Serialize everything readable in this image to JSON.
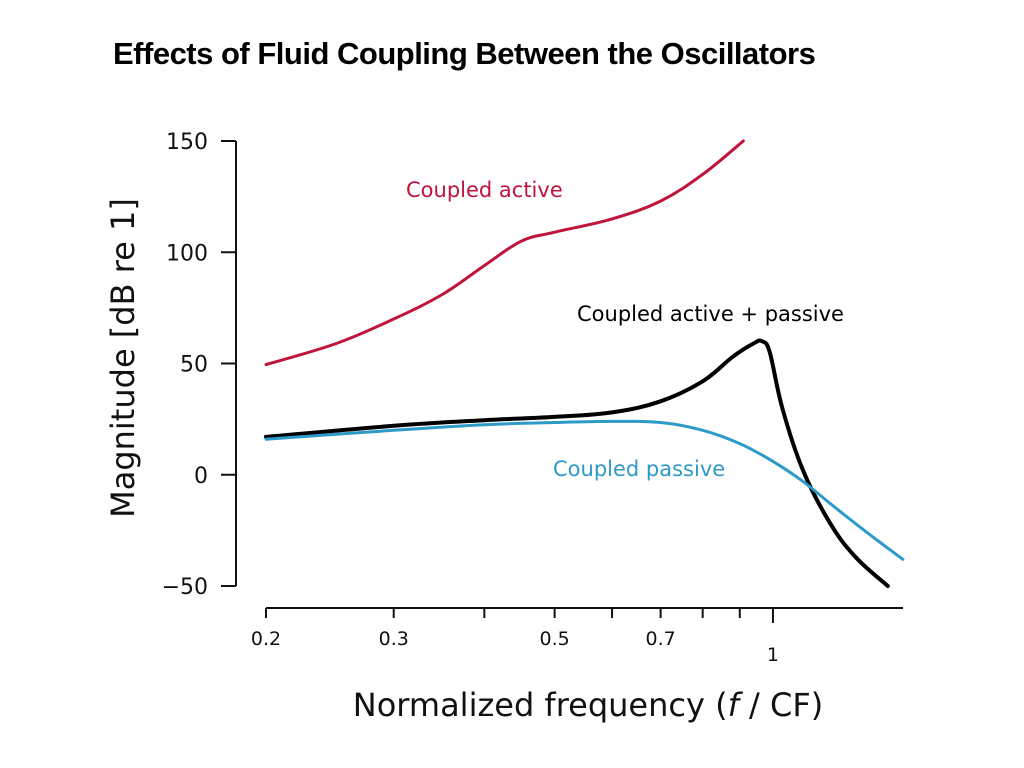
{
  "title": "Effects of Fluid Coupling Between the Oscillators",
  "chart_data": {
    "type": "line",
    "title": "Effects of Fluid Coupling Between the Oscillators",
    "xlabel_parts": [
      "Normalized frequency (",
      "f",
      " / CF)"
    ],
    "xlabel": "Normalized frequency (f / CF)",
    "ylabel": "Magnitude [dB re 1]",
    "xscale": "log",
    "xlim": [
      0.2,
      1.51
    ],
    "ylim": [
      -50,
      150
    ],
    "yticks": [
      150,
      100,
      50,
      0,
      -50
    ],
    "ytick_labels": [
      "150",
      "100",
      "50",
      "0",
      "−50"
    ],
    "xticks": [
      0.2,
      0.3,
      0.4,
      0.5,
      0.6,
      0.7,
      0.8,
      0.9,
      1
    ],
    "xtick_labels": [
      {
        "value": 0.2,
        "label": "0.2"
      },
      {
        "value": 0.3,
        "label": "0.3"
      },
      {
        "value": 0.5,
        "label": "0.5"
      },
      {
        "value": 0.7,
        "label": "0.7"
      },
      {
        "value": 1,
        "label": "1"
      }
    ],
    "grid": false,
    "legend": "inline labels",
    "series": [
      {
        "name": "Coupled active",
        "color": "#c0143c",
        "x": [
          0.2,
          0.25,
          0.3,
          0.35,
          0.4,
          0.45,
          0.5,
          0.6,
          0.7,
          0.8,
          0.91
        ],
        "y": [
          49.5,
          59,
          70,
          81,
          94,
          105,
          109,
          115,
          123,
          135,
          150
        ]
      },
      {
        "name": "Coupled active + passive",
        "color": "#000000",
        "x": [
          0.2,
          0.3,
          0.4,
          0.5,
          0.6,
          0.7,
          0.8,
          0.88,
          0.94,
          0.966,
          0.99,
          1.03,
          1.1,
          1.2,
          1.3,
          1.44
        ],
        "y": [
          17,
          22,
          24.5,
          26,
          28,
          33,
          42,
          53,
          59,
          60,
          55,
          30,
          2,
          -22,
          -37,
          -50
        ]
      },
      {
        "name": "Coupled passive",
        "color": "#2e9ac8",
        "x": [
          0.2,
          0.3,
          0.4,
          0.5,
          0.6,
          0.7,
          0.8,
          0.9,
          1.0,
          1.1,
          1.2,
          1.3,
          1.4,
          1.51
        ],
        "y": [
          16,
          20,
          22.5,
          23.5,
          24,
          23.5,
          20,
          14,
          6,
          -3,
          -13,
          -22,
          -30,
          -38
        ]
      }
    ]
  }
}
